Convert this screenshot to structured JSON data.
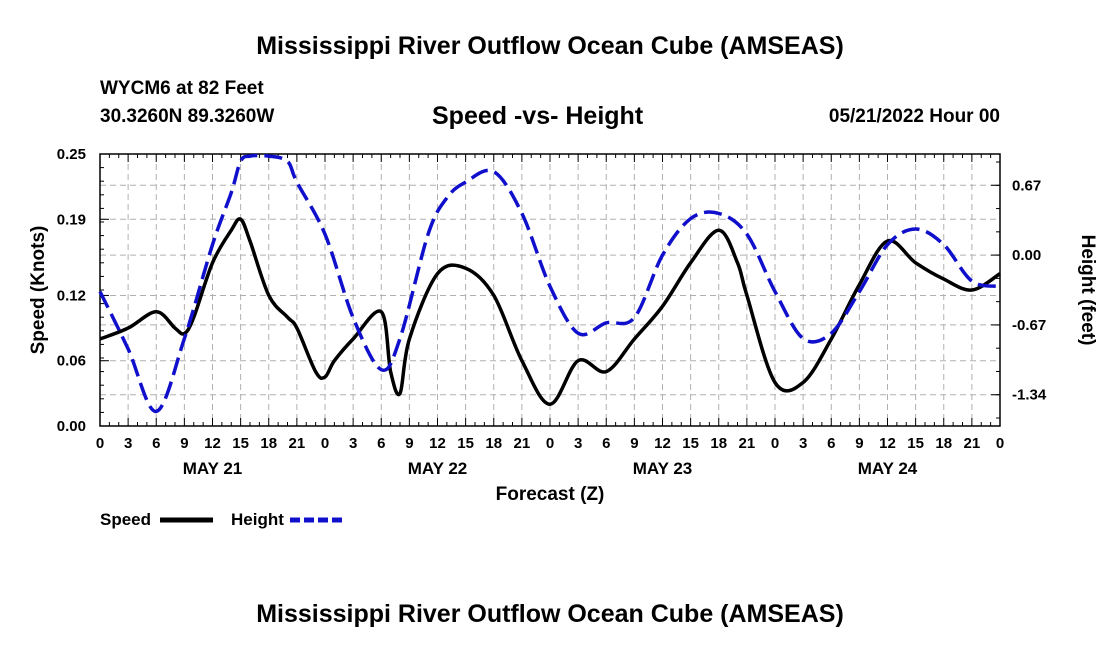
{
  "page": {
    "title": "Mississippi River Outflow Ocean Cube (AMSEAS)",
    "station": "WYCM6 at 82 Feet",
    "coords": "30.3260N  89.3260W",
    "subtitle": "Speed -vs- Height",
    "date": "05/21/2022 Hour 00",
    "footer_title": "Mississippi River Outflow Ocean Cube (AMSEAS)"
  },
  "chart_data": {
    "type": "line",
    "title": "Speed -vs- Height",
    "xlabel": "Forecast (Z)",
    "ylabel": "Speed (Knots)",
    "ylabel_right": "Height (feet)",
    "xlim": [
      0,
      96
    ],
    "ylim": [
      0,
      0.25
    ],
    "ylim_right": [
      -1.64,
      0.97
    ],
    "grid": true,
    "x_ticks": [
      0,
      3,
      6,
      9,
      12,
      15,
      18,
      21,
      24,
      27,
      30,
      33,
      36,
      39,
      42,
      45,
      48,
      51,
      54,
      57,
      60,
      63,
      66,
      69,
      72,
      75,
      78,
      81,
      84,
      87,
      90,
      93,
      96
    ],
    "x_tick_labels": [
      "0",
      "3",
      "6",
      "9",
      "12",
      "15",
      "18",
      "21",
      "0",
      "3",
      "6",
      "9",
      "12",
      "15",
      "18",
      "21",
      "0",
      "3",
      "6",
      "9",
      "12",
      "15",
      "18",
      "21",
      "0",
      "3",
      "6",
      "9",
      "12",
      "15",
      "18",
      "21",
      "0"
    ],
    "y_ticks": [
      0.0,
      0.06,
      0.12,
      0.19,
      0.25
    ],
    "y_tick_labels": [
      "0.00",
      "0.06",
      "0.12",
      "0.19",
      "0.25"
    ],
    "y_right_ticks": [
      0.67,
      0.0,
      -0.67,
      -1.34
    ],
    "y_right_tick_labels": [
      "0.67",
      "0.00",
      "-0.67",
      "-1.34"
    ],
    "day_labels": [
      {
        "x": 12,
        "label": "MAY 21"
      },
      {
        "x": 36,
        "label": "MAY 22"
      },
      {
        "x": 60,
        "label": "MAY 23"
      },
      {
        "x": 84,
        "label": "MAY 24"
      }
    ],
    "legend": [
      {
        "name": "Speed",
        "color": "#000000",
        "dash": "solid"
      },
      {
        "name": "Height",
        "color": "#1010cc",
        "dash": "dashed"
      }
    ],
    "legend_position": "bottom-left",
    "series": [
      {
        "name": "Speed",
        "axis": "left",
        "color": "#000000",
        "x": [
          0,
          3,
          6,
          8,
          9,
          10,
          12,
          14,
          15,
          16,
          18,
          20,
          21,
          23,
          24,
          25,
          27,
          30,
          31,
          32,
          33,
          36,
          39,
          42,
          45,
          48,
          51,
          54,
          57,
          60,
          63,
          66,
          68,
          69,
          72,
          75,
          78,
          81,
          84,
          87,
          90,
          93,
          96
        ],
        "values": [
          0.08,
          0.09,
          0.105,
          0.09,
          0.085,
          0.1,
          0.15,
          0.18,
          0.19,
          0.17,
          0.12,
          0.1,
          0.09,
          0.05,
          0.045,
          0.06,
          0.08,
          0.105,
          0.05,
          0.03,
          0.08,
          0.14,
          0.145,
          0.12,
          0.06,
          0.02,
          0.06,
          0.05,
          0.08,
          0.11,
          0.15,
          0.18,
          0.15,
          0.12,
          0.04,
          0.04,
          0.08,
          0.13,
          0.17,
          0.15,
          0.135,
          0.125,
          0.14
        ]
      },
      {
        "name": "Height",
        "axis": "right",
        "color": "#1010cc",
        "x": [
          0,
          3,
          6,
          9,
          12,
          14,
          15,
          16,
          18,
          20,
          21,
          24,
          27,
          30,
          32,
          35,
          37,
          39,
          42,
          45,
          48,
          51,
          54,
          57,
          60,
          63,
          66,
          69,
          72,
          75,
          78,
          81,
          84,
          87,
          90,
          93,
          96
        ],
        "values": [
          -0.35,
          -0.9,
          -1.5,
          -0.8,
          0.1,
          0.6,
          0.9,
          0.95,
          0.95,
          0.9,
          0.7,
          0.2,
          -0.6,
          -1.1,
          -0.8,
          0.2,
          0.55,
          0.7,
          0.8,
          0.4,
          -0.3,
          -0.75,
          -0.65,
          -0.6,
          0.0,
          0.35,
          0.4,
          0.2,
          -0.35,
          -0.8,
          -0.75,
          -0.35,
          0.1,
          0.25,
          0.1,
          -0.25,
          -0.3
        ]
      }
    ]
  }
}
